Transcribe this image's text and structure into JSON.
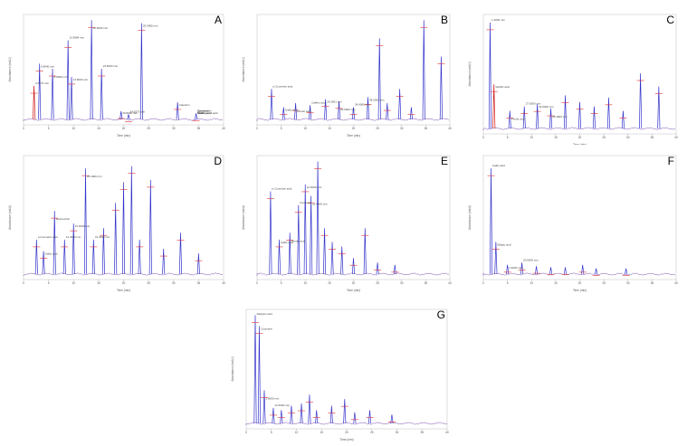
{
  "figure": {
    "panels": [
      {
        "letter": "A",
        "xlabel": "Time (min)",
        "ylabel": "Absorbance (mAU)",
        "peaks": [
          {
            "t": 2.1,
            "h": 0.33,
            "c": "#d01010"
          },
          {
            "t": 3.2,
            "h": 0.55,
            "c": "#3333cc"
          },
          {
            "t": 5.8,
            "h": 0.5,
            "c": "#3333cc"
          },
          {
            "t": 8.9,
            "h": 0.78,
            "c": "#3333cc"
          },
          {
            "t": 9.6,
            "h": 0.42,
            "c": "#3333cc"
          },
          {
            "t": 13.6,
            "h": 0.98,
            "c": "#3333cc"
          },
          {
            "t": 15.6,
            "h": 0.5,
            "c": "#3333cc"
          },
          {
            "t": 23.6,
            "h": 0.95,
            "c": "#3333cc"
          },
          {
            "t": 19.5,
            "h": 0.08,
            "c": "#3333cc"
          },
          {
            "t": 21.0,
            "h": 0.05,
            "c": "#3333cc"
          },
          {
            "t": 30.8,
            "h": 0.17,
            "c": "#3333cc"
          },
          {
            "t": 34.5,
            "h": 0.06,
            "c": "#3333cc"
          }
        ],
        "annotations": [
          "2.0476 min",
          "6.8040 min",
          "8.9000 min",
          "11.9984 min",
          "13.6000 min",
          "15.6000 min",
          "23.6000 min",
          "29.3965 min",
          "30.8000 min",
          "34.5573 min",
          "Catechin",
          "Chlorogenic acid",
          "Epicatechin",
          "Vanillic acid",
          "Rutin",
          "Quercetin"
        ]
      },
      {
        "letter": "B",
        "xlabel": "Time (min)",
        "ylabel": "Absorbance (mAU)",
        "peaks": [
          {
            "t": 3.0,
            "h": 0.3,
            "c": "#3333cc"
          },
          {
            "t": 5.5,
            "h": 0.12,
            "c": "#3333cc"
          },
          {
            "t": 8.0,
            "h": 0.16,
            "c": "#3333cc"
          },
          {
            "t": 11.0,
            "h": 0.14,
            "c": "#3333cc"
          },
          {
            "t": 14.2,
            "h": 0.2,
            "c": "#3333cc"
          },
          {
            "t": 17.0,
            "h": 0.18,
            "c": "#3333cc"
          },
          {
            "t": 20.0,
            "h": 0.12,
            "c": "#3333cc"
          },
          {
            "t": 23.0,
            "h": 0.22,
            "c": "#3333cc"
          },
          {
            "t": 25.4,
            "h": 0.8,
            "c": "#3333cc"
          },
          {
            "t": 27.0,
            "h": 0.16,
            "c": "#3333cc"
          },
          {
            "t": 29.6,
            "h": 0.3,
            "c": "#3333cc"
          },
          {
            "t": 32.0,
            "h": 0.12,
            "c": "#3333cc"
          },
          {
            "t": 34.6,
            "h": 0.98,
            "c": "#3333cc"
          },
          {
            "t": 38.2,
            "h": 0.62,
            "c": "#3333cc"
          }
        ],
        "annotations": [
          "p-Coumaric acid",
          "Gallic acid",
          "Ferulic acid",
          "Caffeic acid",
          "25.3831 min",
          "29.6000 min",
          "34.6000 min",
          "38.2000 min"
        ]
      },
      {
        "letter": "C",
        "xlabel": "Time (min)",
        "ylabel": "Absorbance (mAU)",
        "peaks": [
          {
            "t": 1.4,
            "h": 0.96,
            "c": "#3333cc"
          },
          {
            "t": 2.2,
            "h": 0.4,
            "c": "#d01010"
          },
          {
            "t": 5.5,
            "h": 0.16,
            "c": "#3333cc"
          },
          {
            "t": 8.5,
            "h": 0.2,
            "c": "#3333cc"
          },
          {
            "t": 11.2,
            "h": 0.22,
            "c": "#3333cc"
          },
          {
            "t": 14.0,
            "h": 0.18,
            "c": "#3333cc"
          },
          {
            "t": 17.0,
            "h": 0.3,
            "c": "#3333cc"
          },
          {
            "t": 20.0,
            "h": 0.24,
            "c": "#3333cc"
          },
          {
            "t": 23.0,
            "h": 0.2,
            "c": "#3333cc"
          },
          {
            "t": 26.0,
            "h": 0.28,
            "c": "#3333cc"
          },
          {
            "t": 29.0,
            "h": 0.16,
            "c": "#3333cc"
          },
          {
            "t": 32.6,
            "h": 0.5,
            "c": "#3333cc"
          },
          {
            "t": 36.4,
            "h": 0.38,
            "c": "#3333cc"
          }
        ],
        "annotations": [
          "1.4000 min",
          "Vanillic acid",
          "Ferulic acid",
          "27.0000 min",
          "32.6000 min",
          "36.4000 min"
        ]
      },
      {
        "letter": "D",
        "xlabel": "Time (min)",
        "ylabel": "Absorbance (mAU)",
        "peaks": [
          {
            "t": 2.6,
            "h": 0.3,
            "c": "#3333cc"
          },
          {
            "t": 4.0,
            "h": 0.2,
            "c": "#3333cc"
          },
          {
            "t": 6.2,
            "h": 0.55,
            "c": "#3333cc"
          },
          {
            "t": 8.2,
            "h": 0.3,
            "c": "#3333cc"
          },
          {
            "t": 10.0,
            "h": 0.44,
            "c": "#3333cc"
          },
          {
            "t": 12.4,
            "h": 0.92,
            "c": "#3333cc"
          },
          {
            "t": 14.0,
            "h": 0.3,
            "c": "#3333cc"
          },
          {
            "t": 16.0,
            "h": 0.4,
            "c": "#3333cc"
          },
          {
            "t": 18.4,
            "h": 0.62,
            "c": "#3333cc"
          },
          {
            "t": 20.0,
            "h": 0.8,
            "c": "#3333cc"
          },
          {
            "t": 21.6,
            "h": 0.94,
            "c": "#3333cc"
          },
          {
            "t": 23.2,
            "h": 0.3,
            "c": "#3333cc"
          },
          {
            "t": 25.4,
            "h": 0.82,
            "c": "#3333cc"
          },
          {
            "t": 28.0,
            "h": 0.22,
            "c": "#3333cc"
          },
          {
            "t": 31.4,
            "h": 0.36,
            "c": "#3333cc"
          },
          {
            "t": 35.0,
            "h": 0.18,
            "c": "#3333cc"
          }
        ],
        "annotations": [
          "p-Coumaric acid",
          "Gallic acid",
          "Isoeriocitrin",
          "12.4000 min",
          "21.6000 min",
          "25.4000 min",
          "31.4000 min"
        ]
      },
      {
        "letter": "E",
        "xlabel": "Time (min)",
        "ylabel": "Absorbance (mAU)",
        "peaks": [
          {
            "t": 2.8,
            "h": 0.72,
            "c": "#3333cc"
          },
          {
            "t": 4.6,
            "h": 0.3,
            "c": "#3333cc"
          },
          {
            "t": 6.8,
            "h": 0.36,
            "c": "#3333cc"
          },
          {
            "t": 8.6,
            "h": 0.6,
            "c": "#3333cc"
          },
          {
            "t": 10.0,
            "h": 0.78,
            "c": "#3333cc"
          },
          {
            "t": 11.2,
            "h": 0.68,
            "c": "#3333cc"
          },
          {
            "t": 12.6,
            "h": 0.98,
            "c": "#3333cc"
          },
          {
            "t": 14.0,
            "h": 0.4,
            "c": "#3333cc"
          },
          {
            "t": 15.6,
            "h": 0.28,
            "c": "#3333cc"
          },
          {
            "t": 17.6,
            "h": 0.24,
            "c": "#3333cc"
          },
          {
            "t": 20.0,
            "h": 0.14,
            "c": "#3333cc"
          },
          {
            "t": 22.4,
            "h": 0.4,
            "c": "#3333cc"
          },
          {
            "t": 25.0,
            "h": 0.1,
            "c": "#3333cc"
          },
          {
            "t": 28.6,
            "h": 0.08,
            "c": "#3333cc"
          }
        ],
        "annotations": [
          "p-Coumaric acid",
          "Gallic acid",
          "Ferulic acid",
          "Coumarin",
          "12.6000 min",
          "22.4000 min"
        ]
      },
      {
        "letter": "F",
        "xlabel": "Time (min)",
        "ylabel": "Absorbance (mAU)",
        "peaks": [
          {
            "t": 1.6,
            "h": 0.92,
            "c": "#3333cc"
          },
          {
            "t": 2.6,
            "h": 0.28,
            "c": "#3333cc"
          },
          {
            "t": 5.0,
            "h": 0.08,
            "c": "#3333cc"
          },
          {
            "t": 8.0,
            "h": 0.1,
            "c": "#3333cc"
          },
          {
            "t": 11.0,
            "h": 0.07,
            "c": "#3333cc"
          },
          {
            "t": 14.0,
            "h": 0.06,
            "c": "#3333cc"
          },
          {
            "t": 17.0,
            "h": 0.06,
            "c": "#3333cc"
          },
          {
            "t": 20.6,
            "h": 0.08,
            "c": "#3333cc"
          },
          {
            "t": 23.4,
            "h": 0.05,
            "c": "#3333cc"
          },
          {
            "t": 29.6,
            "h": 0.05,
            "c": "#3333cc"
          }
        ],
        "annotations": [
          "Gallic acid",
          "Ellagic acid",
          "1.6000 min",
          "20.6000 min"
        ]
      },
      {
        "letter": "G",
        "xlabel": "Time (min)",
        "ylabel": "Absorbance (mAU)",
        "peaks": [
          {
            "t": 1.8,
            "h": 0.98,
            "c": "#3333cc"
          },
          {
            "t": 2.6,
            "h": 0.88,
            "c": "#3333cc"
          },
          {
            "t": 3.6,
            "h": 0.3,
            "c": "#3333cc"
          },
          {
            "t": 5.4,
            "h": 0.14,
            "c": "#3333cc"
          },
          {
            "t": 7.0,
            "h": 0.12,
            "c": "#3333cc"
          },
          {
            "t": 9.0,
            "h": 0.16,
            "c": "#3333cc"
          },
          {
            "t": 11.0,
            "h": 0.18,
            "c": "#3333cc"
          },
          {
            "t": 12.6,
            "h": 0.26,
            "c": "#3333cc"
          },
          {
            "t": 14.0,
            "h": 0.12,
            "c": "#3333cc"
          },
          {
            "t": 17.0,
            "h": 0.16,
            "c": "#3333cc"
          },
          {
            "t": 19.6,
            "h": 0.22,
            "c": "#3333cc"
          },
          {
            "t": 21.6,
            "h": 0.1,
            "c": "#3333cc"
          },
          {
            "t": 24.6,
            "h": 0.12,
            "c": "#3333cc"
          },
          {
            "t": 29.0,
            "h": 0.08,
            "c": "#3333cc"
          }
        ],
        "annotations": [
          "Salicylic acid",
          "Coumarin",
          "1.8000 min",
          "12.6000 min"
        ]
      }
    ]
  },
  "chart_data": [
    {
      "type": "line",
      "panel": "A",
      "title": "",
      "xlabel": "Time (min)",
      "ylabel": "Absorbance (mAU)",
      "xlim": [
        0,
        40
      ],
      "grid": false
    },
    {
      "type": "line",
      "panel": "B",
      "title": "",
      "xlabel": "Time (min)",
      "ylabel": "Absorbance (mAU)",
      "xlim": [
        0,
        40
      ],
      "grid": false
    },
    {
      "type": "line",
      "panel": "C",
      "title": "",
      "xlabel": "Time (min)",
      "ylabel": "Absorbance (mAU)",
      "xlim": [
        0,
        40
      ],
      "grid": false
    },
    {
      "type": "line",
      "panel": "D",
      "title": "",
      "xlabel": "Time (min)",
      "ylabel": "Absorbance (mAU)",
      "xlim": [
        0,
        40
      ],
      "grid": false
    },
    {
      "type": "line",
      "panel": "E",
      "title": "",
      "xlabel": "Time (min)",
      "ylabel": "Absorbance (mAU)",
      "xlim": [
        0,
        40
      ],
      "grid": false
    },
    {
      "type": "line",
      "panel": "F",
      "title": "",
      "xlabel": "Time (min)",
      "ylabel": "Absorbance (mAU)",
      "xlim": [
        0,
        40
      ],
      "grid": false
    },
    {
      "type": "line",
      "panel": "G",
      "title": "",
      "xlabel": "Time (min)",
      "ylabel": "Absorbance (mAU)",
      "xlim": [
        0,
        40
      ],
      "grid": false
    }
  ]
}
